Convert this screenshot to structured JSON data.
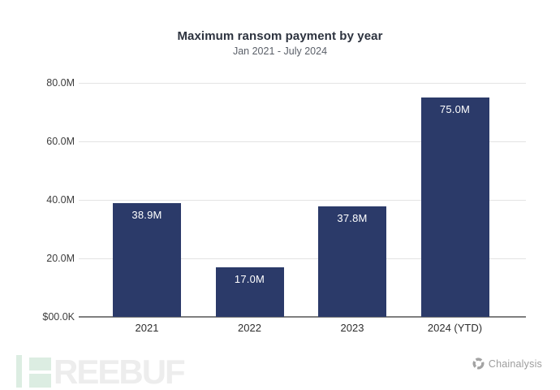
{
  "chart_data": {
    "type": "bar",
    "title": "Maximum ransom payment by year",
    "subtitle": "Jan 2021 - July 2024",
    "categories": [
      "2021",
      "2022",
      "2023",
      "2024 (YTD)"
    ],
    "values": [
      38900000,
      17000000,
      37800000,
      75000000
    ],
    "value_labels": [
      "38.9M",
      "17.0M",
      "37.8M",
      "75.0M"
    ],
    "yticks": [
      {
        "value": 0,
        "label": "$00.0K"
      },
      {
        "value": 20000000,
        "label": "20.0M"
      },
      {
        "value": 40000000,
        "label": "40.0M"
      },
      {
        "value": 60000000,
        "label": "60.0M"
      },
      {
        "value": 80000000,
        "label": "80.0M"
      }
    ],
    "ylim": [
      0,
      80000000
    ],
    "xlabel": "",
    "ylabel": "",
    "grid": true,
    "legend_position": "none",
    "bar_color": "#2b3a69",
    "gridline_color": "#e3e3e3",
    "axis_line_color": "#7f7f7f"
  },
  "footer": {
    "watermark_text": "REEBUF",
    "watermark_green": "#dcede2",
    "brand_label": "Chainalysis",
    "brand_color": "#9d9d9d"
  }
}
